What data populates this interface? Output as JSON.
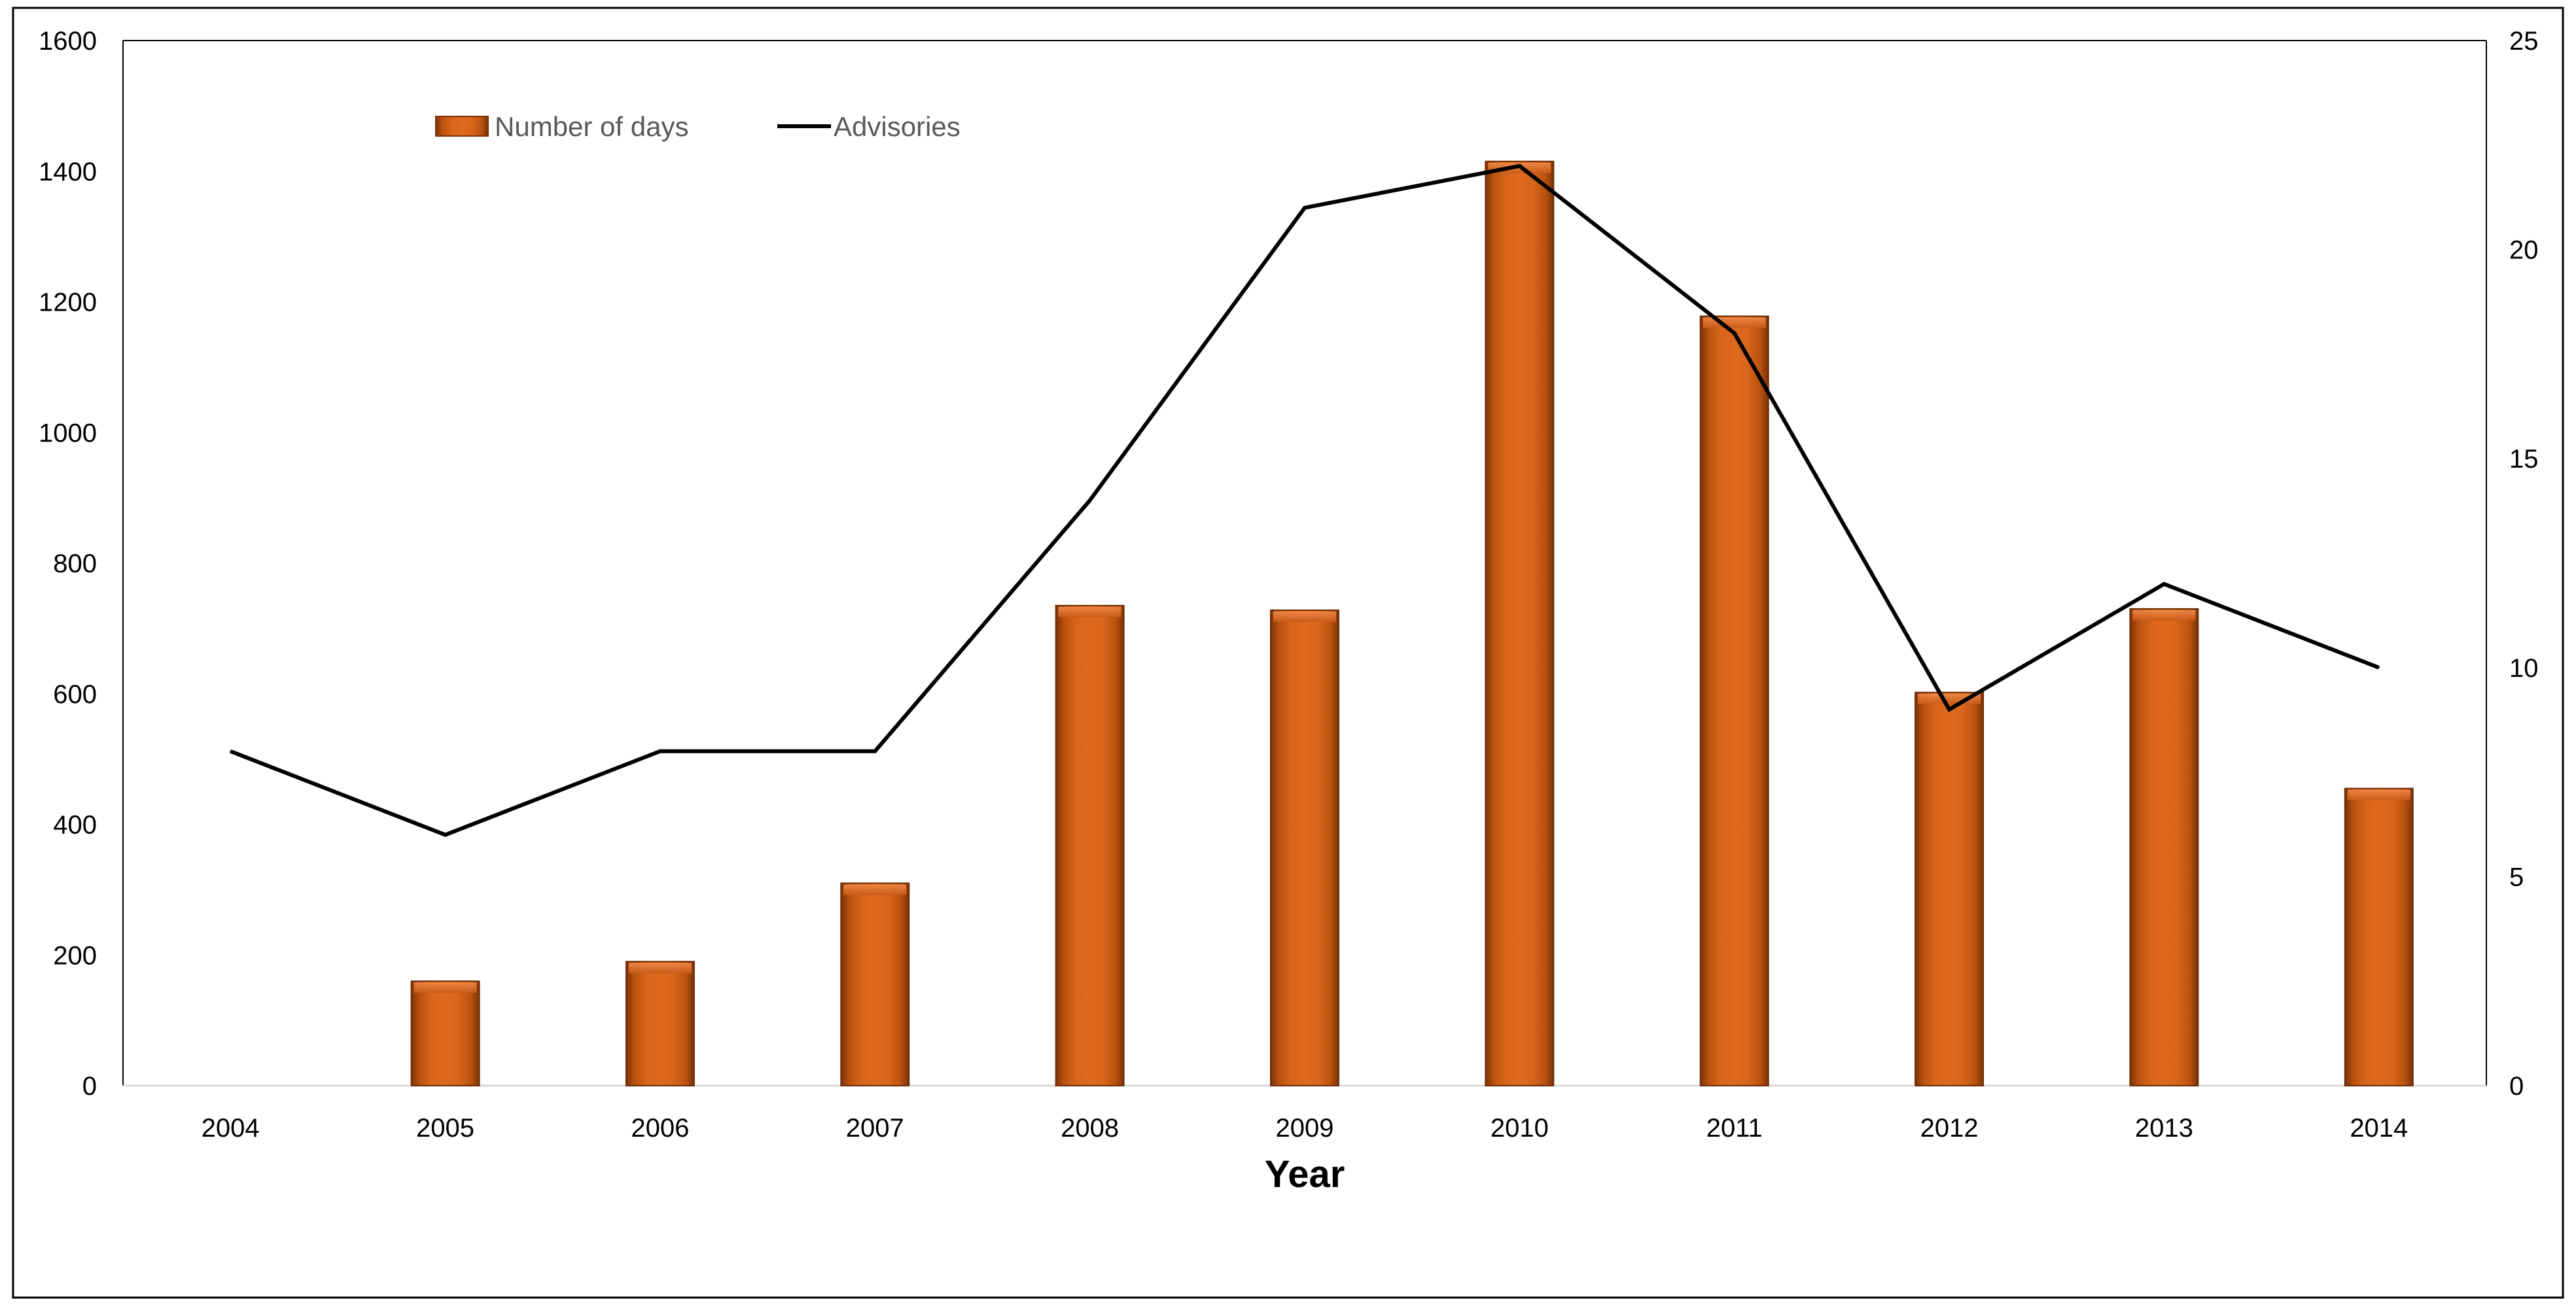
{
  "chart_data": {
    "type": "bar+line",
    "title": "",
    "xlabel": "Year",
    "ylabel_left": "",
    "ylabel_right": "",
    "categories": [
      "2004",
      "2005",
      "2006",
      "2007",
      "2008",
      "2009",
      "2010",
      "2011",
      "2012",
      "2013",
      "2014"
    ],
    "series": [
      {
        "name": "Number of days",
        "type": "bar",
        "axis": "left",
        "color": "#D2601A",
        "values": [
          0,
          160,
          190,
          310,
          735,
          728,
          1415,
          1178,
          602,
          730,
          455
        ]
      },
      {
        "name": "Advisories",
        "type": "line",
        "axis": "right",
        "color": "#000000",
        "values": [
          8,
          6,
          8,
          8,
          14,
          21,
          22,
          18,
          9,
          12,
          10
        ]
      }
    ],
    "y_left": {
      "min": 0,
      "max": 1600,
      "ticks": [
        "0",
        "200",
        "400",
        "600",
        "800",
        "1000",
        "1200",
        "1400",
        "1600"
      ]
    },
    "y_right": {
      "min": 0,
      "max": 25,
      "ticks": [
        "0",
        "5",
        "10",
        "15",
        "20",
        "25"
      ]
    },
    "grid": false,
    "legend": {
      "placement": "top-left"
    }
  }
}
